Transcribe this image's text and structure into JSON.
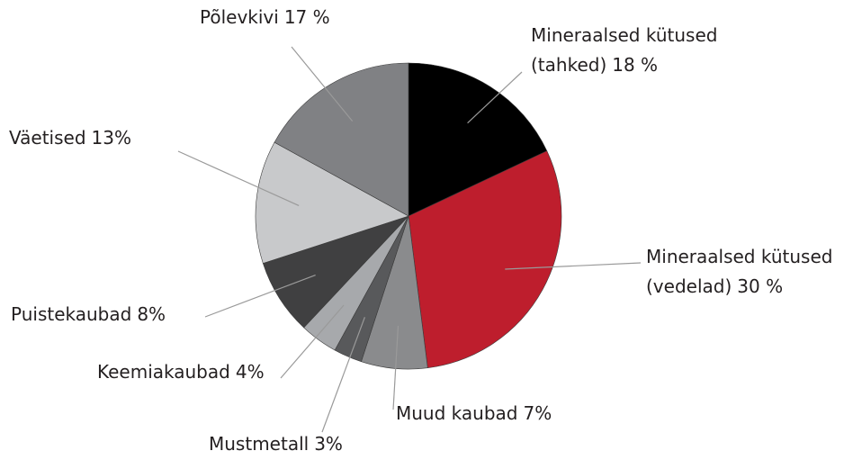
{
  "chart_data": {
    "type": "pie",
    "categories": [
      "Mineraalsed kütused (tahked)",
      "Mineraalsed kütused (vedelad)",
      "Muud kaubad",
      "Mustmetall",
      "Keemiakaubad",
      "Puistekaubad",
      "Väetised",
      "Põlevkivi"
    ],
    "values": [
      18,
      30,
      7,
      3,
      4,
      8,
      13,
      17
    ],
    "value_labels": [
      "18 %",
      "30 %",
      "7%",
      "3%",
      "4%",
      "8%",
      "13%",
      "17 %"
    ],
    "colors": [
      "#000000",
      "#be1e2d",
      "#8a8b8d",
      "#58595b",
      "#a7a9ac",
      "#404041",
      "#c8c9cb",
      "#808184"
    ]
  }
}
